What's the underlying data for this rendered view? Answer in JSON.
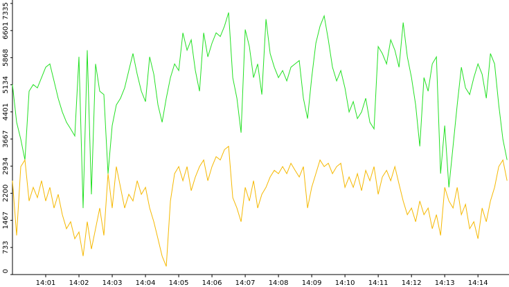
{
  "chart_data": {
    "type": "line",
    "x": [
      0,
      7.5,
      15,
      22.5,
      30,
      37.5,
      45,
      52.5,
      60,
      67.5,
      75,
      82.5,
      90,
      97.5,
      105,
      112.5,
      120,
      127.5,
      135,
      142.5,
      150,
      157.5,
      165,
      172.5,
      180,
      187.5,
      195,
      202.5,
      210,
      217.5,
      225,
      232.5,
      240,
      247.5,
      255,
      262.5,
      270,
      277.5,
      285,
      292.5,
      300,
      307.5,
      315,
      322.5,
      330,
      337.5,
      345,
      352.5,
      360,
      367.5,
      375,
      382.5,
      390,
      397.5,
      405,
      412.5,
      420,
      427.5,
      435,
      442.5,
      450,
      457.5,
      465,
      472.5,
      480,
      487.5,
      495,
      502.5,
      510,
      517.5,
      525,
      532.5,
      540,
      547.5,
      555,
      562.5,
      570,
      577.5,
      585,
      592.5,
      600,
      607.5,
      615,
      622.5,
      630,
      637.5,
      645,
      652.5,
      660,
      667.5,
      675,
      682.5,
      690,
      697.5,
      705,
      712.5,
      720,
      727.5,
      735,
      742.5,
      750,
      757.5,
      765,
      772.5,
      780,
      787.5,
      795,
      802.5,
      810,
      817.5,
      825,
      832.5,
      840,
      847.5,
      855,
      862.5,
      870,
      877.5,
      885,
      892.5
    ],
    "series": [
      {
        "color": "#22e022",
        "values": [
          5140,
          4120,
          3660,
          3100,
          4960,
          5140,
          5050,
          5330,
          5610,
          5700,
          5240,
          4770,
          4400,
          4120,
          3940,
          3750,
          5890,
          1800,
          6070,
          2170,
          5700,
          4960,
          4870,
          2730,
          4030,
          4590,
          4770,
          5050,
          5520,
          5980,
          5420,
          4960,
          4680,
          5890,
          5420,
          4590,
          4120,
          4770,
          5330,
          5700,
          5520,
          6540,
          6070,
          6350,
          5520,
          4960,
          6540,
          5890,
          6260,
          6540,
          6440,
          6720,
          7090,
          5330,
          4770,
          3840,
          6630,
          6170,
          5330,
          5700,
          4870,
          6910,
          5980,
          5610,
          5330,
          5520,
          5240,
          5610,
          5700,
          5790,
          4770,
          4220,
          5330,
          6260,
          6720,
          7000,
          6350,
          5610,
          5240,
          5520,
          5050,
          4400,
          4680,
          4220,
          4400,
          4770,
          4120,
          3940,
          6170,
          5980,
          5700,
          6350,
          6070,
          5610,
          6820,
          5890,
          5330,
          4590,
          3470,
          5330,
          4960,
          5700,
          5890,
          2730,
          4030,
          2360,
          3470,
          4590,
          5610,
          5050,
          4870,
          5330,
          5700,
          5420,
          4770,
          5980,
          5700,
          4590,
          3660,
          3100
        ]
      },
      {
        "color": "#f5b800",
        "values": [
          2540,
          1060,
          2920,
          3100,
          1990,
          2360,
          2080,
          2540,
          1990,
          2360,
          1800,
          2170,
          1620,
          1240,
          1430,
          970,
          1150,
          500,
          1430,
          690,
          1240,
          1800,
          1060,
          2730,
          1800,
          2920,
          2360,
          1800,
          2170,
          1990,
          2540,
          2170,
          2360,
          1800,
          1430,
          970,
          500,
          220,
          1990,
          2730,
          2920,
          2540,
          2920,
          2270,
          2640,
          2920,
          3100,
          2540,
          2920,
          3190,
          3100,
          3380,
          3470,
          2080,
          1800,
          1430,
          2360,
          1990,
          2540,
          1800,
          2170,
          2360,
          2640,
          2820,
          2730,
          2920,
          2730,
          3010,
          2820,
          2640,
          2920,
          1800,
          2360,
          2730,
          3100,
          2920,
          3010,
          2730,
          2920,
          3010,
          2360,
          2640,
          2360,
          2730,
          2270,
          2820,
          2540,
          2920,
          2170,
          2640,
          2820,
          2540,
          2920,
          2450,
          1990,
          1620,
          1800,
          1430,
          1990,
          1620,
          1800,
          1240,
          1620,
          1060,
          2360,
          1990,
          1800,
          2360,
          1620,
          1900,
          1240,
          1430,
          970,
          1800,
          1430,
          1990,
          2360,
          2920,
          3100,
          2540
        ]
      }
    ],
    "xlim": [
      0,
      896
    ],
    "xticks": [
      {
        "value": 60,
        "label": "14:01"
      },
      {
        "value": 120,
        "label": "14:02"
      },
      {
        "value": 180,
        "label": "14:03"
      },
      {
        "value": 240,
        "label": "14:04"
      },
      {
        "value": 300,
        "label": "14:05"
      },
      {
        "value": 360,
        "label": "14:06"
      },
      {
        "value": 420,
        "label": "14:07"
      },
      {
        "value": 480,
        "label": "14:08"
      },
      {
        "value": 540,
        "label": "14:09"
      },
      {
        "value": 600,
        "label": "14:10"
      },
      {
        "value": 660,
        "label": "14:11"
      },
      {
        "value": 720,
        "label": "14:12"
      },
      {
        "value": 780,
        "label": "14:13"
      },
      {
        "value": 840,
        "label": "14:14"
      }
    ],
    "ylim": [
      0,
      7335
    ],
    "yticks": [
      0,
      733,
      1467,
      2200,
      2934,
      3667,
      4401,
      5134,
      5868,
      6601,
      7335
    ]
  }
}
